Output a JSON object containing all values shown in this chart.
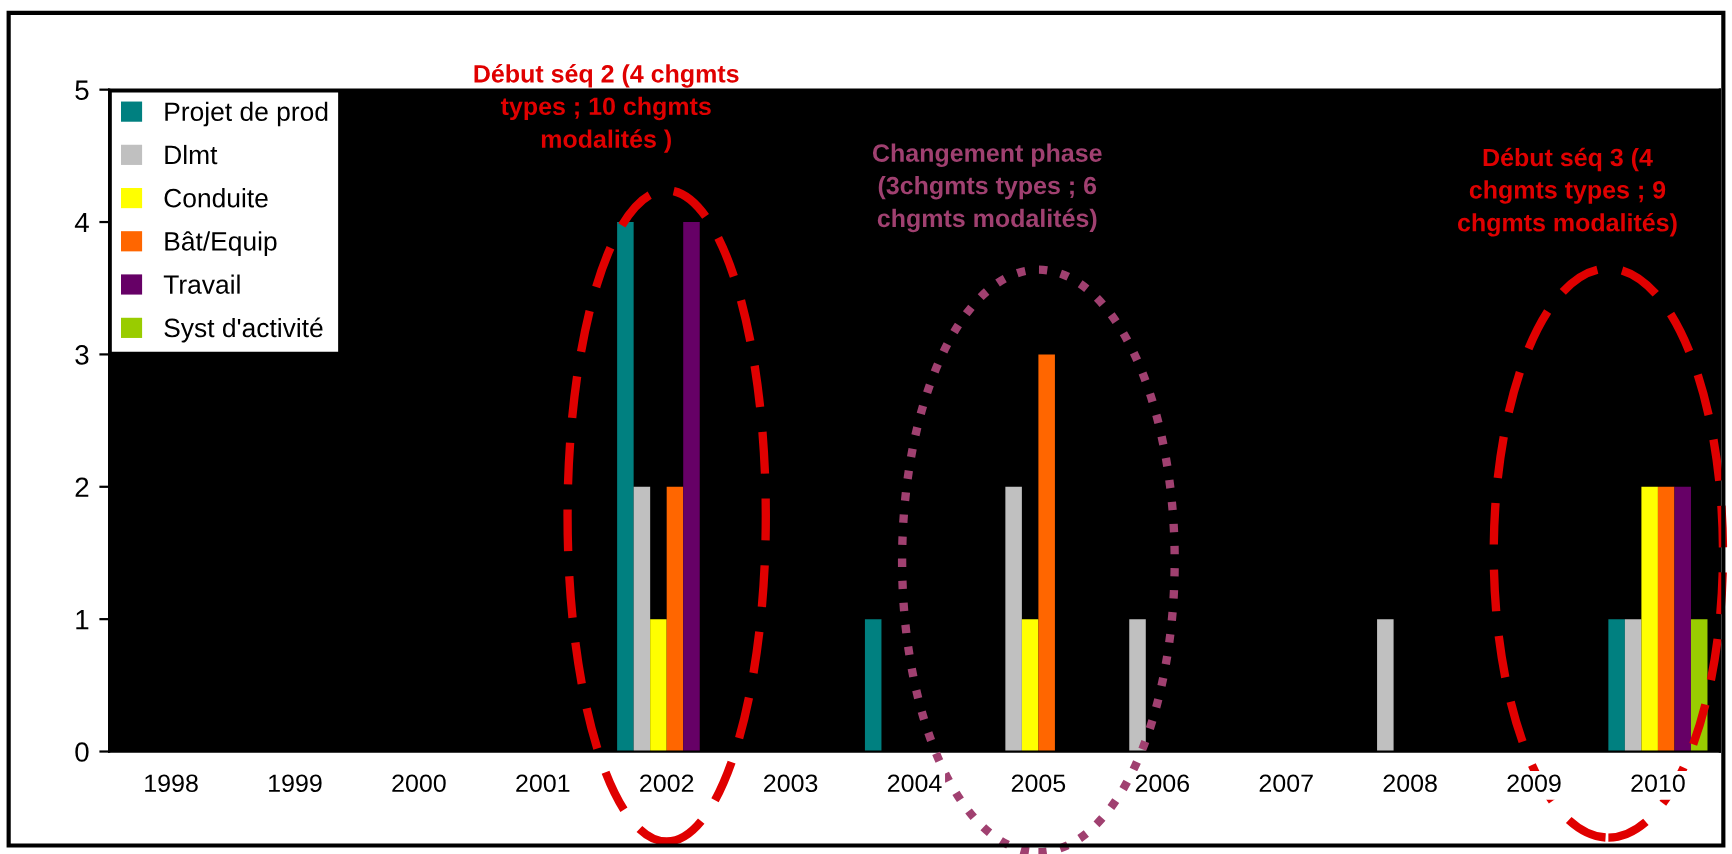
{
  "chart_data": {
    "type": "bar",
    "categories": [
      "1998",
      "1999",
      "2000",
      "2001",
      "2002",
      "2003",
      "2004",
      "2005",
      "2006",
      "2007",
      "2008",
      "2009",
      "2010"
    ],
    "series": [
      {
        "name": "Projet de prod",
        "color": "#008080",
        "values": [
          0,
          0,
          0,
          0,
          4,
          0,
          1,
          0,
          0,
          0,
          0,
          0,
          1
        ]
      },
      {
        "name": "Dlmt",
        "color": "#c0c0c0",
        "values": [
          0,
          0,
          0,
          0,
          2,
          0,
          0,
          2,
          1,
          0,
          1,
          0,
          1
        ]
      },
      {
        "name": "Conduite",
        "color": "#ffff00",
        "values": [
          0,
          0,
          0,
          0,
          1,
          0,
          0,
          1,
          0,
          0,
          0,
          0,
          2
        ]
      },
      {
        "name": "Bât/Equip",
        "color": "#ff6600",
        "values": [
          0,
          0,
          0,
          0,
          2,
          0,
          0,
          3,
          0,
          0,
          0,
          0,
          2
        ]
      },
      {
        "name": "Travail",
        "color": "#660066",
        "values": [
          0,
          0,
          0,
          0,
          4,
          0,
          0,
          0,
          0,
          0,
          0,
          0,
          2
        ]
      },
      {
        "name": "Syst d'activité",
        "color": "#99cc00",
        "values": [
          0,
          0,
          0,
          0,
          0,
          0,
          0,
          0,
          0,
          0,
          0,
          0,
          1
        ]
      }
    ],
    "ylim": [
      0,
      5
    ],
    "yticks": [
      0,
      1,
      2,
      3,
      4,
      5
    ],
    "grid": false,
    "legend": "top left",
    "annotations": [
      "Début séq 2 (4 chgmts\ntypes ; 10 chgmts\nmodalités )",
      "Changement phase\n(3chgmts types ; 6\nchgmts modalités)",
      "Début séq 3 (4\nchgmts types ; 9\nchgmts modalités)"
    ]
  }
}
